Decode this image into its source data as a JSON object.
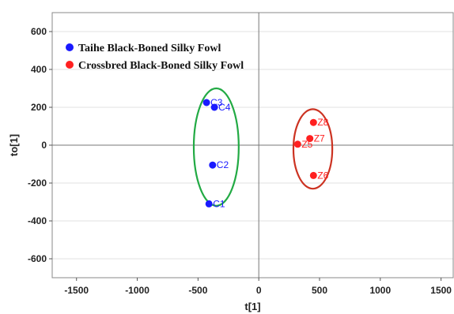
{
  "chart_data": {
    "type": "scatter",
    "xlabel": "t[1]",
    "ylabel": "to[1]",
    "xlim": [
      -1700,
      1600
    ],
    "ylim": [
      -700,
      700
    ],
    "x_ticks": [
      -1500,
      -1000,
      -500,
      0,
      500,
      1000,
      1500
    ],
    "y_ticks": [
      -600,
      -400,
      -200,
      0,
      200,
      400,
      600
    ],
    "grid": true,
    "legend_position": "top-left",
    "series": [
      {
        "name": "Taihe Black-Boned Silky Fowl",
        "color": "#1a1aff",
        "points": [
          {
            "label": "C1",
            "x": -410,
            "y": -310
          },
          {
            "label": "C2",
            "x": -380,
            "y": -105
          },
          {
            "label": "C3",
            "x": -430,
            "y": 225
          },
          {
            "label": "C4",
            "x": -365,
            "y": 200
          }
        ],
        "ellipse": {
          "cx": -350,
          "cy": -10,
          "rx": 185,
          "ry": 310,
          "color": "#22aa44"
        }
      },
      {
        "name": "Crossbred Black-Boned Silky Fowl",
        "color": "#ff2020",
        "points": [
          {
            "label": "Z5",
            "x": 320,
            "y": 5
          },
          {
            "label": "Z6",
            "x": 450,
            "y": -160
          },
          {
            "label": "Z7",
            "x": 420,
            "y": 35
          },
          {
            "label": "Z8",
            "x": 450,
            "y": 120
          }
        ],
        "ellipse": {
          "cx": 445,
          "cy": -20,
          "rx": 160,
          "ry": 210,
          "color": "#cc3322"
        }
      }
    ]
  }
}
